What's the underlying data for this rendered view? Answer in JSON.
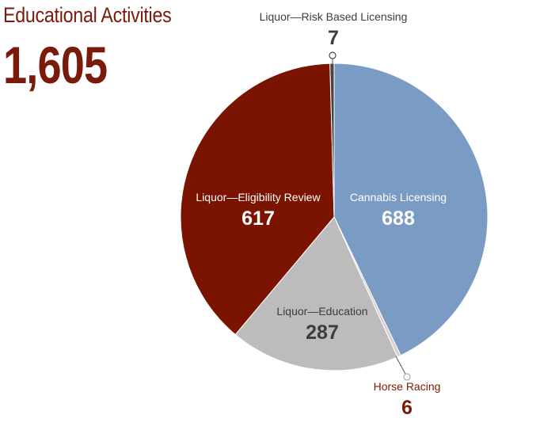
{
  "header": {
    "title": "Educational Activities",
    "total": "1,605"
  },
  "colors": {
    "cannabis": "#7a9cc4",
    "education": "#bcbcbc",
    "eligibility": "#7a1400",
    "risk": "#444444",
    "horse": "#d9cfc6",
    "dark_text": "#3d3d3d",
    "accent_text": "#7a1a0a",
    "white_text": "#ffffff"
  },
  "chart_data": {
    "type": "pie",
    "title": "Educational Activities",
    "total": 1605,
    "slices": [
      {
        "label": "Cannabis Licensing",
        "value": 688,
        "value_label": "688"
      },
      {
        "label": "Horse Racing",
        "value": 6,
        "value_label": "6"
      },
      {
        "label": "Liquor—Education",
        "value": 287,
        "value_label": "287"
      },
      {
        "label": "Liquor—Eligibility Review",
        "value": 617,
        "value_label": "617"
      },
      {
        "label": "Liquor—Risk Based Licensing",
        "value": 7,
        "value_label": "7"
      }
    ],
    "start_angle": "12 o'clock",
    "direction": "clockwise",
    "legend": "none"
  }
}
